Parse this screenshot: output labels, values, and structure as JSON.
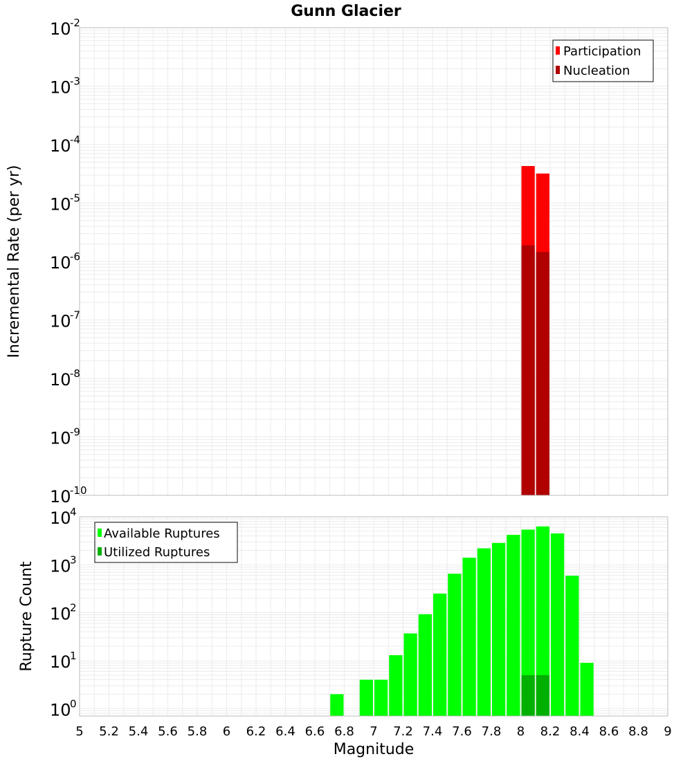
{
  "chart_title": "Gunn Glacier",
  "colors": {
    "participation": "#ff0000",
    "nucleation": "#b00000",
    "available": "#00ff00",
    "utilized": "#00b000",
    "grid": "#ebebeb",
    "frame": "#bbbbbb"
  },
  "chart_data": [
    {
      "type": "bar",
      "title": "Gunn Glacier",
      "xlabel": "Magnitude",
      "ylabel": "Incremental Rate (per yr)",
      "y_scale": "log",
      "xlim": [
        5,
        9
      ],
      "ylim": [
        1e-10,
        0.01
      ],
      "bar_width": 0.1,
      "grid": true,
      "legend_position": "top-right",
      "series": [
        {
          "name": "Participation",
          "color": "#ff0000",
          "x": [
            8.05,
            8.15
          ],
          "values": [
            4.3e-05,
            3.2e-05
          ]
        },
        {
          "name": "Nucleation",
          "color": "#b00000",
          "x": [
            8.05,
            8.15
          ],
          "values": [
            1.9e-06,
            1.45e-06
          ]
        }
      ]
    },
    {
      "type": "bar",
      "xlabel": "Magnitude",
      "ylabel": "Rupture Count",
      "y_scale": "log",
      "xlim": [
        5,
        9
      ],
      "ylim": [
        0.7,
        10000
      ],
      "bar_width": 0.1,
      "grid": true,
      "legend_position": "top-left",
      "series": [
        {
          "name": "Available Ruptures",
          "color": "#00ff00",
          "x": [
            6.75,
            6.95,
            7.05,
            7.15,
            7.25,
            7.35,
            7.45,
            7.55,
            7.65,
            7.75,
            7.85,
            7.95,
            8.05,
            8.15,
            8.25,
            8.35,
            8.45
          ],
          "values": [
            2,
            4,
            4,
            13,
            37,
            93,
            250,
            650,
            1400,
            2200,
            2850,
            4200,
            5400,
            6300,
            4500,
            590,
            9
          ]
        },
        {
          "name": "Utilized Ruptures",
          "color": "#00b000",
          "x": [
            8.05,
            8.15
          ],
          "values": [
            5,
            5
          ]
        }
      ]
    }
  ],
  "x_ticks": [
    "5",
    "5.2",
    "5.4",
    "5.6",
    "5.8",
    "6",
    "6.2",
    "6.4",
    "6.6",
    "6.8",
    "7",
    "7.2",
    "7.4",
    "7.6",
    "7.8",
    "8",
    "8.2",
    "8.4",
    "8.6",
    "8.8",
    "9"
  ],
  "top_y_exponents": [
    "-2",
    "-3",
    "-4",
    "-5",
    "-6",
    "-7",
    "-8",
    "-9",
    "-10"
  ],
  "bottom_y_exponents": [
    "4",
    "3",
    "2",
    "1",
    "0"
  ],
  "y_tick_base": "10"
}
